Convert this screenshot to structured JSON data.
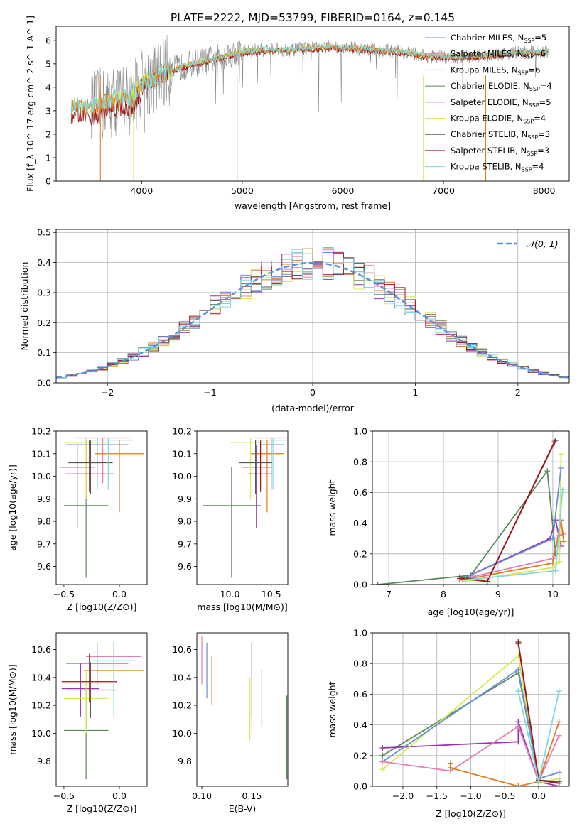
{
  "title": "PLATE=2222, MJD=53799, FIBERID=0164, z=0.145",
  "colors": {
    "chabrier_miles": "#6b8fd6",
    "salpeter_miles": "#e57fb5",
    "kroupa_miles": "#e07a1f",
    "chabrier_elodie": "#5a8a5a",
    "salpeter_elodie": "#9b30b0",
    "kroupa_elodie": "#d4ea55",
    "chabrier_stelib": "#555555",
    "salpeter_stelib": "#a01515",
    "kroupa_stelib": "#7fd8e0",
    "data_gray": "#8a8a8a"
  },
  "legend_spectrum": [
    {
      "key": "chabrier_miles",
      "label": "Chabrier MILES, N_SSP=5"
    },
    {
      "key": "salpeter_miles",
      "label": "Salpeter MILES, N_SSP=6"
    },
    {
      "key": "kroupa_miles",
      "label": "Kroupa MILES, N_SSP=6"
    },
    {
      "key": "chabrier_elodie",
      "label": "Chabrier ELODIE, N_SSP=4"
    },
    {
      "key": "salpeter_elodie",
      "label": "Salpeter ELODIE, N_SSP=5"
    },
    {
      "key": "kroupa_elodie",
      "label": "Kroupa ELODIE, N_SSP=4"
    },
    {
      "key": "chabrier_stelib",
      "label": "Chabrier STELIB, N_SSP=3"
    },
    {
      "key": "salpeter_stelib",
      "label": "Salpeter STELIB, N_SSP=3"
    },
    {
      "key": "kroupa_stelib",
      "label": "Kroupa STELIB, N_SSP=4"
    }
  ],
  "chart_data": [
    {
      "type": "line",
      "name": "spectrum",
      "xlabel": "wavelength [Angstrom, rest frame]",
      "ylabel": "Flux [f_λ 10^-17 erg cm^-2 s^-1 A^-1]",
      "xlim": [
        3150,
        8250
      ],
      "ylim": [
        0,
        6.6
      ],
      "xticks": [
        4000,
        5000,
        6000,
        7000,
        8000
      ],
      "yticks": [
        0,
        1,
        2,
        3,
        4,
        5,
        6
      ],
      "x": [
        3300,
        3500,
        3700,
        3900,
        4000,
        4200,
        4500,
        4800,
        5000,
        5200,
        5500,
        5800,
        6000,
        6300,
        6600,
        6900,
        7200,
        7500,
        7800,
        8050
      ],
      "series": [
        {
          "name": "Kroupa STELIB, N_SSP=4",
          "values": [
            3.2,
            3.1,
            3.4,
            3.5,
            4.1,
            4.6,
            5.0,
            5.3,
            5.5,
            5.6,
            5.6,
            5.7,
            5.7,
            5.6,
            5.5,
            5.3,
            5.3,
            5.4,
            5.5,
            5.5
          ]
        }
      ],
      "grid": false,
      "legend": "top-right"
    },
    {
      "type": "bar",
      "name": "residual histogram",
      "xlabel": "(data-model)/error",
      "ylabel": "Normed distribution",
      "xlim": [
        -2.5,
        2.5
      ],
      "ylim": [
        0,
        0.51
      ],
      "xticks": [
        -2,
        -1,
        0,
        1,
        2
      ],
      "yticks": [
        0.0,
        0.1,
        0.2,
        0.3,
        0.4,
        0.5
      ],
      "reference_curve": "N(0,1)",
      "grid": true,
      "legend": "top-right"
    },
    {
      "type": "scatter",
      "name": "age vs metallicity",
      "xlabel": "Z [log10(Z/Z⊙)]",
      "ylabel": "age  [log10(age/yr)]",
      "xlim": [
        -0.57,
        0.25
      ],
      "ylim": [
        9.52,
        10.2
      ],
      "xticks": [
        -0.5,
        0.0
      ],
      "yticks": [
        9.6,
        9.7,
        9.8,
        9.9,
        10.0,
        10.1,
        10.2
      ],
      "points": [
        {
          "key": "chabrier_miles",
          "x": -0.2,
          "y": 10.14,
          "xerr": 0.28,
          "yerr": [
            0.2,
            0.03
          ]
        },
        {
          "key": "salpeter_miles",
          "x": -0.15,
          "y": 10.17,
          "xerr": 0.25,
          "yerr": [
            0.2,
            0.0
          ]
        },
        {
          "key": "kroupa_miles",
          "x": 0.0,
          "y": 10.1,
          "xerr": 0.22,
          "yerr": [
            0.26,
            0.06
          ]
        },
        {
          "key": "chabrier_elodie",
          "x": -0.3,
          "y": 9.87,
          "xerr": 0.2,
          "yerr": [
            0.32,
            0.29
          ]
        },
        {
          "key": "salpeter_elodie",
          "x": -0.38,
          "y": 10.04,
          "xerr": 0.15,
          "yerr": [
            0.27,
            0.1
          ]
        },
        {
          "key": "kroupa_elodie",
          "x": -0.3,
          "y": 10.15,
          "xerr": 0.2,
          "yerr": [
            0.25,
            0.02
          ]
        },
        {
          "key": "chabrier_stelib",
          "x": -0.26,
          "y": 10.06,
          "xerr": 0.2,
          "yerr": [
            0.14,
            0.1
          ]
        },
        {
          "key": "salpeter_stelib",
          "x": -0.27,
          "y": 10.01,
          "xerr": 0.22,
          "yerr": [
            0.08,
            0.15
          ]
        },
        {
          "key": "kroupa_stelib",
          "x": -0.1,
          "y": 10.16,
          "xerr": 0.22,
          "yerr": [
            0.22,
            0.01
          ]
        }
      ]
    },
    {
      "type": "scatter",
      "name": "age vs mass",
      "xlabel": "mass [log10(M/M⊙)]",
      "ylabel": "",
      "xlim": [
        9.6,
        10.7
      ],
      "ylim": [
        9.52,
        10.2
      ],
      "xticks": [
        10.0,
        10.5
      ],
      "yticks": [
        9.6,
        9.7,
        9.8,
        9.9,
        10.0,
        10.1,
        10.2
      ],
      "points": [
        {
          "key": "chabrier_miles",
          "x": 10.5,
          "y": 10.14,
          "xerr": 0.15,
          "yerr": [
            0.2,
            0.03
          ]
        },
        {
          "key": "salpeter_miles",
          "x": 10.5,
          "y": 10.17,
          "xerr": 0.2,
          "yerr": [
            0.2,
            0.0
          ]
        },
        {
          "key": "kroupa_miles",
          "x": 10.45,
          "y": 10.1,
          "xerr": 0.2,
          "yerr": [
            0.26,
            0.06
          ]
        },
        {
          "key": "chabrier_elodie",
          "x": 10.02,
          "y": 9.87,
          "xerr": 0.35,
          "yerr": [
            0.32,
            0.17
          ]
        },
        {
          "key": "salpeter_elodie",
          "x": 10.32,
          "y": 10.04,
          "xerr": 0.18,
          "yerr": [
            0.27,
            0.1
          ]
        },
        {
          "key": "kroupa_elodie",
          "x": 10.25,
          "y": 10.15,
          "xerr": 0.25,
          "yerr": [
            0.25,
            0.02
          ]
        },
        {
          "key": "chabrier_stelib",
          "x": 10.31,
          "y": 10.06,
          "xerr": 0.2,
          "yerr": [
            0.14,
            0.1
          ]
        },
        {
          "key": "salpeter_stelib",
          "x": 10.37,
          "y": 10.01,
          "xerr": 0.15,
          "yerr": [
            0.08,
            0.15
          ]
        },
        {
          "key": "kroupa_stelib",
          "x": 10.52,
          "y": 10.16,
          "xerr": 0.2,
          "yerr": [
            0.22,
            0.01
          ]
        }
      ]
    },
    {
      "type": "line",
      "name": "mass weight vs age",
      "xlabel": "age  [log10(age/yr)]",
      "ylabel": "mass weight",
      "xlim": [
        6.7,
        10.3
      ],
      "ylim": [
        0,
        1.0
      ],
      "xticks": [
        7,
        8,
        9,
        10
      ],
      "yticks": [
        0.0,
        0.2,
        0.4,
        0.6,
        0.8,
        1.0
      ],
      "grid": true,
      "series": [
        {
          "key": "chabrier_elodie",
          "x": [
            6.8,
            8.5,
            9.9,
            10.05
          ],
          "y": [
            0.0,
            0.06,
            0.74,
            0.2
          ]
        },
        {
          "key": "salpeter_elodie",
          "x": [
            8.3,
            9.95,
            10.05,
            10.15
          ],
          "y": [
            0.03,
            0.3,
            0.42,
            0.25
          ]
        },
        {
          "key": "kroupa_elodie",
          "x": [
            8.4,
            10.0,
            10.12,
            10.15
          ],
          "y": [
            0.02,
            0.11,
            0.15,
            0.85
          ]
        },
        {
          "key": "chabrier_miles",
          "x": [
            8.3,
            10.0,
            10.15
          ],
          "y": [
            0.03,
            0.3,
            0.76
          ]
        },
        {
          "key": "salpeter_miles",
          "x": [
            8.4,
            10.0,
            10.12,
            10.2
          ],
          "y": [
            0.04,
            0.17,
            0.32,
            0.33
          ]
        },
        {
          "key": "kroupa_miles",
          "x": [
            8.35,
            10.0,
            10.15,
            10.2
          ],
          "y": [
            0.03,
            0.14,
            0.42,
            0.28
          ]
        },
        {
          "key": "chabrier_stelib",
          "x": [
            8.3,
            8.8,
            10.05
          ],
          "y": [
            0.05,
            0.02,
            0.94
          ]
        },
        {
          "key": "salpeter_stelib",
          "x": [
            8.3,
            8.8,
            10.03
          ],
          "y": [
            0.04,
            0.02,
            0.93
          ]
        },
        {
          "key": "kroupa_stelib",
          "x": [
            8.4,
            10.05,
            10.18
          ],
          "y": [
            0.03,
            0.09,
            0.62
          ]
        }
      ]
    },
    {
      "type": "scatter",
      "name": "mass vs metallicity",
      "xlabel": "Z [log10(Z/Z⊙)]",
      "ylabel": "mass [log10(M/M⊙)]",
      "xlim": [
        -0.57,
        0.25
      ],
      "ylim": [
        9.62,
        10.72
      ],
      "xticks": [
        -0.5,
        0.0
      ],
      "yticks": [
        9.8,
        10.0,
        10.2,
        10.4,
        10.6
      ],
      "points": [
        {
          "key": "chabrier_miles",
          "x": -0.2,
          "y": 10.5,
          "xerr": 0.28,
          "yerr": [
            0.15,
            0.15
          ]
        },
        {
          "key": "salpeter_miles",
          "x": -0.05,
          "y": 10.55,
          "xerr": 0.25,
          "yerr": [
            0.2,
            0.1
          ]
        },
        {
          "key": "kroupa_miles",
          "x": -0.05,
          "y": 10.45,
          "xerr": 0.27,
          "yerr": [
            0.2,
            0.2
          ]
        },
        {
          "key": "chabrier_elodie",
          "x": -0.3,
          "y": 10.02,
          "xerr": 0.2,
          "yerr": [
            0.35,
            0.3
          ]
        },
        {
          "key": "salpeter_elodie",
          "x": -0.35,
          "y": 10.32,
          "xerr": 0.17,
          "yerr": [
            0.2,
            0.18
          ]
        },
        {
          "key": "kroupa_elodie",
          "x": -0.3,
          "y": 10.25,
          "xerr": 0.2,
          "yerr": [
            0.25,
            0.2
          ]
        },
        {
          "key": "chabrier_stelib",
          "x": -0.26,
          "y": 10.31,
          "xerr": 0.23,
          "yerr": [
            0.2,
            0.2
          ]
        },
        {
          "key": "salpeter_stelib",
          "x": -0.27,
          "y": 10.37,
          "xerr": 0.25,
          "yerr": [
            0.15,
            0.2
          ]
        },
        {
          "key": "kroupa_stelib",
          "x": -0.05,
          "y": 10.52,
          "xerr": 0.2,
          "yerr": [
            0.4,
            0.12
          ]
        }
      ]
    },
    {
      "type": "scatter",
      "name": "mass vs E(B-V)",
      "xlabel": "E(B-V)",
      "ylabel": "",
      "xlim": [
        0.095,
        0.186
      ],
      "ylim": [
        9.62,
        10.72
      ],
      "xticks": [
        0.1,
        0.15
      ],
      "yticks": [
        9.8,
        10.0,
        10.2,
        10.4,
        10.6
      ],
      "points": [
        {
          "key": "chabrier_miles",
          "x": 0.105,
          "y": 10.5,
          "yerr": [
            0.25,
            0.15
          ]
        },
        {
          "key": "salpeter_miles",
          "x": 0.1,
          "y": 10.55,
          "yerr": [
            0.2,
            0.15
          ]
        },
        {
          "key": "kroupa_miles",
          "x": 0.11,
          "y": 10.4,
          "yerr": [
            0.2,
            0.15
          ]
        },
        {
          "key": "chabrier_elodie",
          "x": 0.185,
          "y": 10.02,
          "yerr": [
            0.35,
            0.25
          ]
        },
        {
          "key": "salpeter_elodie",
          "x": 0.16,
          "y": 10.32,
          "yerr": [
            0.27,
            0.13
          ]
        },
        {
          "key": "kroupa_elodie",
          "x": 0.148,
          "y": 10.25,
          "yerr": [
            0.3,
            0.15
          ]
        },
        {
          "key": "chabrier_stelib",
          "x": 0.15,
          "y": 10.31,
          "yerr": [
            0.2,
            0.2
          ]
        },
        {
          "key": "salpeter_stelib",
          "x": 0.15,
          "y": 10.55,
          "yerr": [
            0.1,
            0.1
          ]
        },
        {
          "key": "kroupa_stelib",
          "x": 0.15,
          "y": 10.42,
          "yerr": [
            0.4,
            0.12
          ]
        }
      ]
    },
    {
      "type": "line",
      "name": "mass weight vs metallicity",
      "xlabel": "Z [log10(Z/Z⊙)]",
      "ylabel": "mass weight",
      "xlim": [
        -2.45,
        0.45
      ],
      "ylim": [
        0,
        1.0
      ],
      "xticks": [
        -2.0,
        -1.5,
        -1.0,
        -0.5,
        0.0
      ],
      "yticks": [
        0.0,
        0.2,
        0.4,
        0.6,
        0.8,
        1.0
      ],
      "grid": true,
      "series": [
        {
          "key": "chabrier_elodie",
          "x": [
            -2.3,
            -0.3,
            0.0
          ],
          "y": [
            0.2,
            0.74,
            0.05
          ]
        },
        {
          "key": "salpeter_elodie",
          "x": [
            -2.3,
            -0.3,
            -0.3,
            0.0,
            0.3
          ],
          "y": [
            0.25,
            0.29,
            0.42,
            0.03,
            0.0
          ]
        },
        {
          "key": "kroupa_elodie",
          "x": [
            -2.3,
            -0.3,
            0.0,
            0.3
          ],
          "y": [
            0.11,
            0.85,
            0.02,
            0.05
          ]
        },
        {
          "key": "chabrier_miles",
          "x": [
            -2.3,
            -0.3,
            0.0,
            0.3
          ],
          "y": [
            0.16,
            0.76,
            0.05,
            0.09
          ]
        },
        {
          "key": "salpeter_miles",
          "x": [
            -2.3,
            -1.3,
            -0.3,
            0.0,
            0.3
          ],
          "y": [
            0.16,
            0.1,
            0.39,
            0.03,
            0.33
          ]
        },
        {
          "key": "kroupa_miles",
          "x": [
            -1.3,
            -1.3,
            -0.3,
            0.0,
            0.3
          ],
          "y": [
            0.15,
            0.12,
            0.0,
            0.03,
            0.42
          ]
        },
        {
          "key": "chabrier_stelib",
          "x": [
            -0.3,
            0.0,
            0.3
          ],
          "y": [
            0.94,
            0.04,
            0.03
          ]
        },
        {
          "key": "salpeter_stelib",
          "x": [
            -0.3,
            0.0,
            0.3
          ],
          "y": [
            0.93,
            0.04,
            0.02
          ]
        },
        {
          "key": "kroupa_stelib",
          "x": [
            -0.3,
            0.0,
            0.3
          ],
          "y": [
            0.62,
            0.03,
            0.62
          ]
        }
      ]
    }
  ]
}
